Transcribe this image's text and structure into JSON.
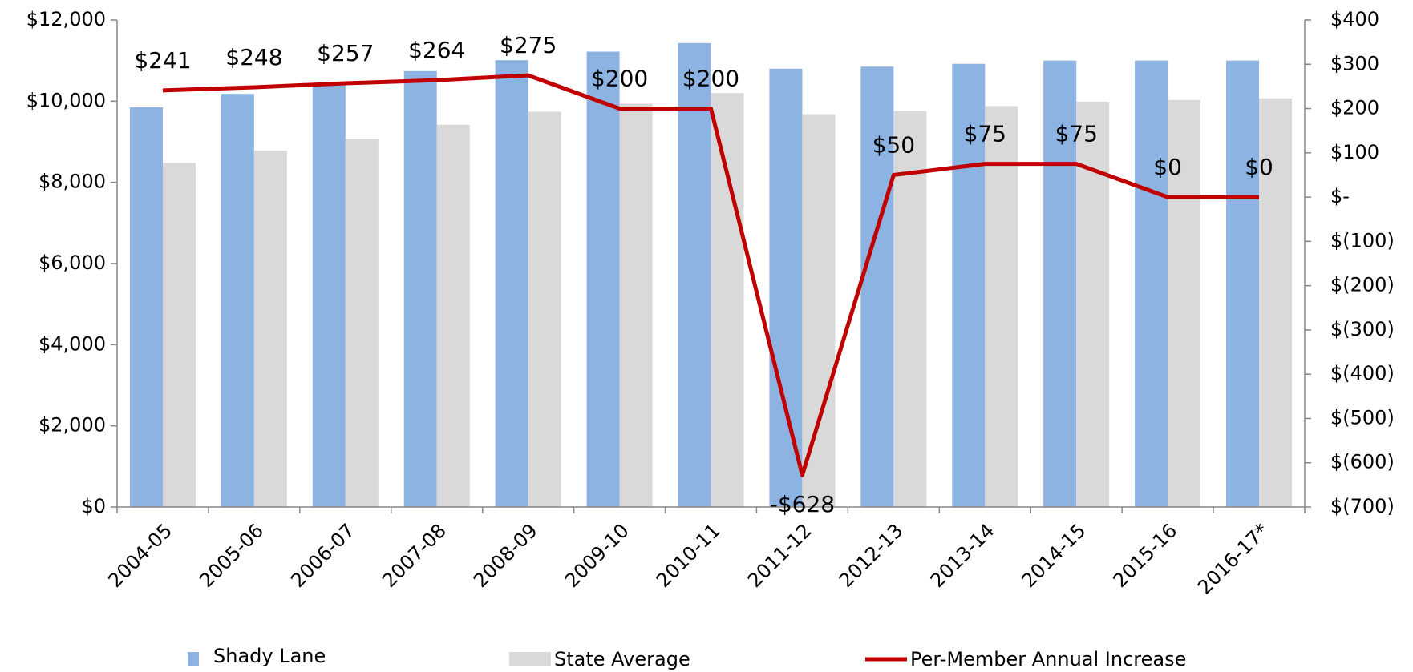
{
  "chart_data": {
    "type": "bar",
    "categories": [
      "2004-05",
      "2005-06",
      "2006-07",
      "2007-08",
      "2008-09",
      "2009-10",
      "2010-11",
      "2011-12",
      "2012-13",
      "2013-14",
      "2014-15",
      "2015-16",
      "2016-17*"
    ],
    "series": [
      {
        "name": "Shady Lane",
        "color": "#8db3e2",
        "values": [
          9850,
          10180,
          10430,
          10740,
          11010,
          11220,
          11430,
          10800,
          10850,
          10920,
          11000,
          11000,
          11000
        ]
      },
      {
        "name": "State Average",
        "color": "#d9d9d9",
        "values": [
          8480,
          8780,
          9060,
          9420,
          9740,
          9940,
          10200,
          9680,
          9760,
          9880,
          9990,
          10030,
          10070
        ]
      },
      {
        "name": "Per-Member Annual Increase",
        "color": "#c00000",
        "type": "line",
        "axis": "y2",
        "values": [
          241,
          248,
          257,
          264,
          275,
          200,
          200,
          -628,
          50,
          75,
          75,
          0,
          0
        ],
        "value_labels": [
          "$241",
          "$248",
          "$257",
          "$264",
          "$275",
          "$200",
          "$200",
          "-$628",
          "$50",
          "$75",
          "$75",
          "$0",
          "$0"
        ]
      }
    ],
    "ylim": [
      0,
      12000
    ],
    "yticks": [
      {
        "value": 0,
        "label": "$0"
      },
      {
        "value": 2000,
        "label": "$2,000"
      },
      {
        "value": 4000,
        "label": "$4,000"
      },
      {
        "value": 6000,
        "label": "$6,000"
      },
      {
        "value": 8000,
        "label": "$8,000"
      },
      {
        "value": 10000,
        "label": "$10,000"
      },
      {
        "value": 12000,
        "label": "$12,000"
      }
    ],
    "y2lim": [
      -700,
      400
    ],
    "y2ticks": [
      {
        "value": -700,
        "label": "$(700)"
      },
      {
        "value": -600,
        "label": "$(600)"
      },
      {
        "value": -500,
        "label": "$(500)"
      },
      {
        "value": -400,
        "label": "$(400)"
      },
      {
        "value": -300,
        "label": "$(300)"
      },
      {
        "value": -200,
        "label": "$(200)"
      },
      {
        "value": -100,
        "label": "$(100)"
      },
      {
        "value": 0,
        "label": "$-"
      },
      {
        "value": 100,
        "label": "$100"
      },
      {
        "value": 200,
        "label": "$200"
      },
      {
        "value": 300,
        "label": "$300"
      },
      {
        "value": 400,
        "label": "$400"
      }
    ],
    "legend": "bottom"
  }
}
